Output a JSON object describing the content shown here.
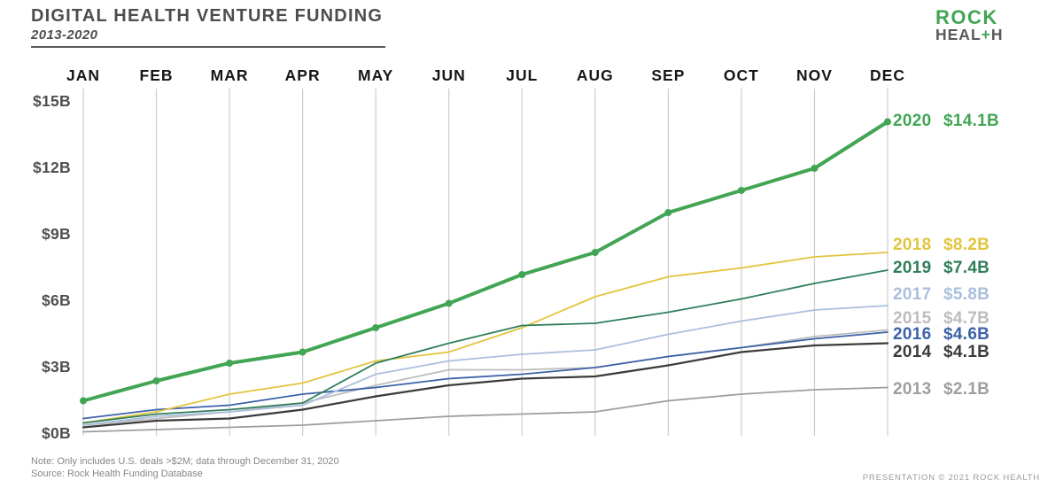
{
  "header": {
    "title": "DIGITAL HEALTH VENTURE FUNDING",
    "subtitle": "2013-2020",
    "logo": {
      "line1": "ROCK",
      "line2_pre": "HEAL",
      "line2_plus": "+",
      "line2_post": "H"
    }
  },
  "footer": {
    "note": "Note: Only includes U.S. deals >$2M; data through December 31, 2020",
    "source": "Source: Rock Health Funding Database",
    "copyright": "PRESENTATION © 2021 ROCK HEALTH"
  },
  "colors": {
    "accent_green": "#42a554",
    "grid": "#cccccc",
    "title_text": "#4d4d4d",
    "month_text": "#161616",
    "axis_text": "#4f4f4f"
  },
  "chart_data": {
    "type": "line",
    "title": "Digital Health Venture Funding 2013-2020, cumulative U.S. funding by month ($B)",
    "x": [
      "JAN",
      "FEB",
      "MAR",
      "APR",
      "MAY",
      "JUN",
      "JUL",
      "AUG",
      "SEP",
      "OCT",
      "NOV",
      "DEC"
    ],
    "xlabel": "",
    "ylabel": "",
    "ylim": [
      0,
      15
    ],
    "y_ticks": [
      {
        "label": "$15B",
        "value": 15
      },
      {
        "label": "$12B",
        "value": 12
      },
      {
        "label": "$9B",
        "value": 9
      },
      {
        "label": "$6B",
        "value": 6
      },
      {
        "label": "$3B",
        "value": 3
      },
      {
        "label": "$0B",
        "value": 0
      }
    ],
    "grid": "vertical-only",
    "legend_position": "right-end-labels",
    "series": [
      {
        "name": "2013",
        "end_label": "$2.1B",
        "total": 2.1,
        "color": "#9e9e9e",
        "emphasis": false,
        "values": [
          0.1,
          0.2,
          0.3,
          0.4,
          0.6,
          0.8,
          0.9,
          1.0,
          1.5,
          1.8,
          2.0,
          2.1
        ]
      },
      {
        "name": "2015",
        "end_label": "$4.7B",
        "total": 4.7,
        "color": "#bdbdbd",
        "emphasis": false,
        "values": [
          0.4,
          0.7,
          1.0,
          1.4,
          2.2,
          2.9,
          2.9,
          3.0,
          3.5,
          3.9,
          4.4,
          4.7
        ]
      },
      {
        "name": "2014",
        "end_label": "$4.1B",
        "total": 4.1,
        "color": "#3b3b3b",
        "emphasis": false,
        "values": [
          0.3,
          0.6,
          0.7,
          1.1,
          1.7,
          2.2,
          2.5,
          2.6,
          3.1,
          3.7,
          4.0,
          4.1
        ]
      },
      {
        "name": "2016",
        "end_label": "$4.6B",
        "total": 4.6,
        "color": "#3d62a8",
        "emphasis": false,
        "values": [
          0.7,
          1.1,
          1.3,
          1.8,
          2.1,
          2.5,
          2.7,
          3.0,
          3.5,
          3.9,
          4.3,
          4.6
        ]
      },
      {
        "name": "2017",
        "end_label": "$5.8B",
        "total": 5.8,
        "color": "#aabfdd",
        "emphasis": false,
        "values": [
          0.4,
          0.8,
          1.0,
          1.3,
          2.7,
          3.3,
          3.6,
          3.8,
          4.5,
          5.1,
          5.6,
          5.8
        ]
      },
      {
        "name": "2018",
        "end_label": "$8.2B",
        "total": 8.2,
        "color": "#e2c43d",
        "emphasis": false,
        "values": [
          0.5,
          1.0,
          1.8,
          2.3,
          3.3,
          3.7,
          4.8,
          6.2,
          7.1,
          7.5,
          8.0,
          8.2
        ]
      },
      {
        "name": "2019",
        "end_label": "$7.4B",
        "total": 7.4,
        "color": "#2f7e5a",
        "emphasis": false,
        "values": [
          0.5,
          0.9,
          1.1,
          1.4,
          3.2,
          4.1,
          4.9,
          5.0,
          5.5,
          6.1,
          6.8,
          7.4
        ]
      },
      {
        "name": "2020",
        "end_label": "$14.1B",
        "total": 14.1,
        "color": "#42a554",
        "emphasis": true,
        "values": [
          1.5,
          2.4,
          3.2,
          3.7,
          4.8,
          5.9,
          7.2,
          8.2,
          10.0,
          11.0,
          12.0,
          14.1
        ]
      }
    ]
  }
}
